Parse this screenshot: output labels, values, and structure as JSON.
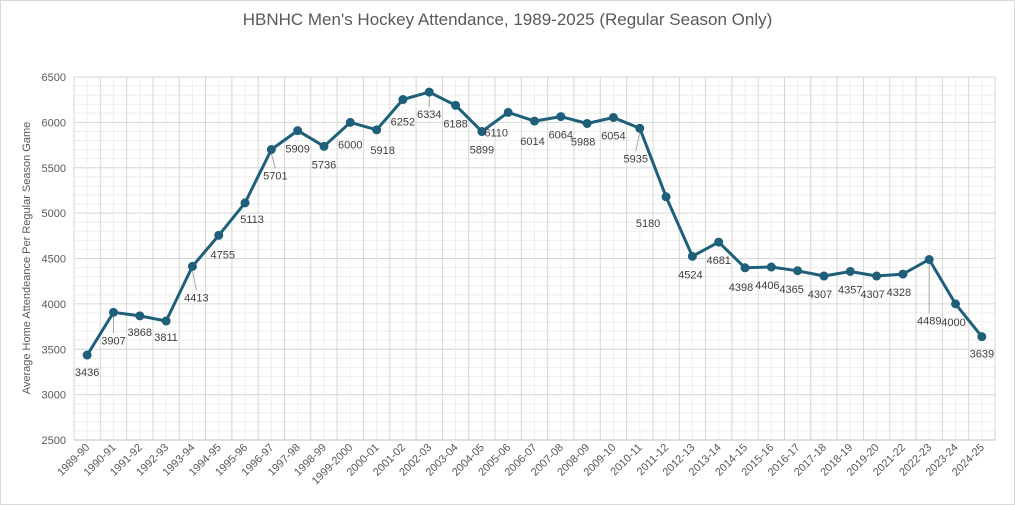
{
  "chart_data": {
    "type": "line",
    "title": "HBNHC Men's Hockey Attendance, 1989-2025 (Regular Season Only)",
    "xlabel": "",
    "ylabel": "Average Home Attendeance Per Regular Season Game",
    "ylim": [
      2500,
      6500
    ],
    "yticks": [
      "2500",
      "3000",
      "3500",
      "4000",
      "4500",
      "5000",
      "5500",
      "6000",
      "6500"
    ],
    "grid": true,
    "line_color": "#1f5f7a",
    "categories": [
      "1989-90",
      "1990-91",
      "1991-92",
      "1992-93",
      "1993-94",
      "1994-95",
      "1995-96",
      "1996-97",
      "1997-98",
      "1998-99",
      "1999-2000",
      "2000-01",
      "2001-02",
      "2002-03",
      "2003-04",
      "2004-05",
      "2005-06",
      "2006-07",
      "2007-08",
      "2008-09",
      "2009-10",
      "2010-11",
      "2011-12",
      "2012-13",
      "2013-14",
      "2014-15",
      "2015-16",
      "2016-17",
      "2017-18",
      "2018-19",
      "2019-20",
      "2021-22",
      "2022-23",
      "2023-24",
      "2024-25"
    ],
    "values": [
      3436,
      3907,
      3868,
      3811,
      4413,
      4755,
      5113,
      5701,
      5909,
      5736,
      6000,
      5918,
      6252,
      6334,
      6188,
      5899,
      6110,
      6014,
      6064,
      5988,
      6054,
      5935,
      5180,
      4524,
      4681,
      4398,
      4406,
      4365,
      4307,
      4357,
      4307,
      4328,
      4489,
      4000,
      3639
    ],
    "data_labels": [
      "3436",
      "3907",
      "3868",
      "3811",
      "4413",
      "4755",
      "5113",
      "5701",
      "5909",
      "5736",
      "6000",
      "5918",
      "6252",
      "6334",
      "6188",
      "5899",
      "6110",
      "6014",
      "6064",
      "5988",
      "6054",
      "5935",
      "5180",
      "4524",
      "4681",
      "4398",
      "4406",
      "4365",
      "4307",
      "4357",
      "4307",
      "4328",
      "4489",
      "4000",
      "3639"
    ]
  }
}
